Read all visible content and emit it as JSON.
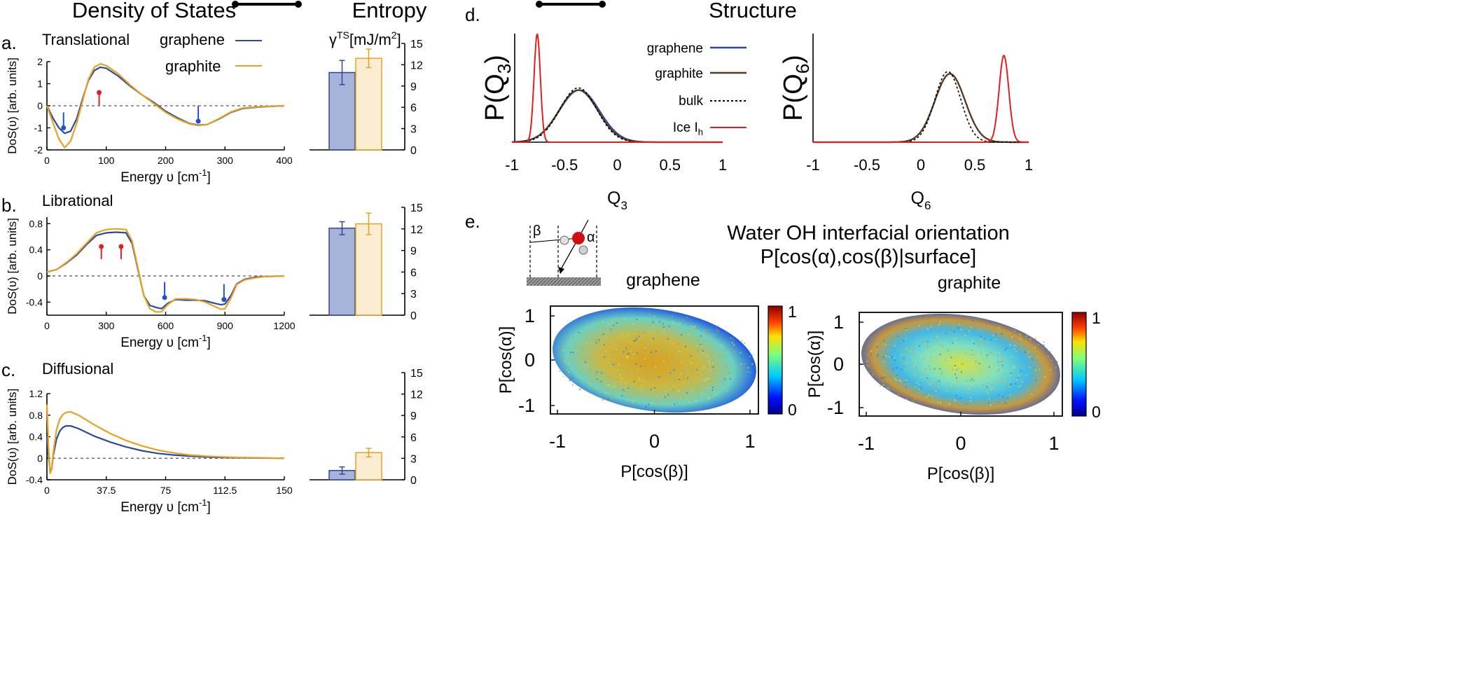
{
  "headers": {
    "dos": "Density of States",
    "entropy": "Entropy",
    "structure": "Structure"
  },
  "panel_labels": {
    "a": "a.",
    "b": "b.",
    "c": "c.",
    "d": "d.",
    "e": "e."
  },
  "colors": {
    "graphene": "#2b4a9b",
    "graphite": "#e8a21f",
    "graphene_bar": "#a7b3d9",
    "graphite_bar": "#fbedd2",
    "ice": "#e02020",
    "bulk": "#000000",
    "graphite_structure": "#5a3a1a",
    "up_arrow": "#e02020",
    "down_arrow": "#2050d0"
  },
  "legend": {
    "graphene": "graphene",
    "graphite": "graphite"
  },
  "structure_legend": {
    "graphene": "graphene",
    "graphite": "graphite",
    "bulk": "bulk",
    "ice": "Ice I",
    "ice_sub": "h"
  },
  "e_panel": {
    "title1": "Water OH interfacial orientation",
    "title2": "P[cos(α),cos(β)|surface]",
    "schematic_beta": "β",
    "schematic_alpha": "α",
    "left_title": "graphene",
    "right_title": "graphite",
    "ylabel": "P[cos(α)]",
    "xlabel": "P[cos(β)]",
    "colorbar_ticks": [
      "1",
      "0"
    ]
  },
  "chart_data": [
    {
      "id": "a_dos",
      "type": "line",
      "subtitle": "Translational",
      "xlabel": "Energy υ [cm",
      "xlabel_sup": "-1",
      "xlabel_tail": "]",
      "ylabel": "DoS(υ) [arb. units]",
      "xlim": [
        0,
        400
      ],
      "ylim": [
        -2,
        2
      ],
      "xticks": [
        0,
        100,
        200,
        300,
        400
      ],
      "yticks": [
        -2,
        -1,
        0,
        1,
        2
      ],
      "series": [
        {
          "name": "graphene",
          "x": [
            0,
            10,
            20,
            30,
            40,
            50,
            60,
            70,
            80,
            90,
            100,
            120,
            140,
            160,
            180,
            200,
            220,
            240,
            255,
            270,
            290,
            310,
            330,
            360,
            400
          ],
          "y": [
            0,
            -0.55,
            -1.0,
            -1.25,
            -1.15,
            -0.6,
            0.3,
            1.15,
            1.6,
            1.75,
            1.7,
            1.35,
            0.9,
            0.5,
            0.15,
            -0.25,
            -0.55,
            -0.8,
            -0.88,
            -0.85,
            -0.6,
            -0.3,
            -0.12,
            -0.05,
            0
          ]
        },
        {
          "name": "graphite",
          "x": [
            0,
            10,
            20,
            30,
            40,
            50,
            60,
            70,
            80,
            90,
            100,
            120,
            140,
            160,
            180,
            200,
            220,
            240,
            255,
            270,
            290,
            310,
            330,
            360,
            400
          ],
          "y": [
            0,
            -0.75,
            -1.5,
            -1.9,
            -1.6,
            -0.8,
            0.2,
            1.2,
            1.75,
            1.9,
            1.82,
            1.45,
            0.95,
            0.5,
            0.1,
            -0.3,
            -0.6,
            -0.82,
            -0.9,
            -0.85,
            -0.58,
            -0.28,
            -0.1,
            -0.04,
            0
          ]
        }
      ],
      "markers": [
        {
          "dir": "down",
          "x": 28,
          "y": -1.0
        },
        {
          "dir": "up",
          "x": 88,
          "y": 0.6
        },
        {
          "dir": "down",
          "x": 255,
          "y": -0.7
        }
      ]
    },
    {
      "id": "a_entropy",
      "type": "bar",
      "ylabel": "γ",
      "ylabel_sup": "TS",
      "ylabel_tail": "[mJ/m",
      "ylabel_sup2": "2",
      "ylabel_end": "]",
      "ylim": [
        0,
        15
      ],
      "yticks": [
        0,
        3,
        6,
        9,
        12,
        15
      ],
      "categories": [
        "graphene",
        "graphite"
      ],
      "values": [
        10.9,
        12.9
      ],
      "errors": [
        1.7,
        1.3
      ]
    },
    {
      "id": "b_dos",
      "type": "line",
      "subtitle": "Librational",
      "xlabel": "Energy υ [cm",
      "xlabel_sup": "-1",
      "xlabel_tail": "]",
      "ylabel": "DoS(υ) [arb. units]",
      "xlim": [
        0,
        1200
      ],
      "ylim": [
        -0.6,
        0.9
      ],
      "xticks": [
        0,
        300,
        600,
        900,
        1200
      ],
      "yticks": [
        -0.4,
        0,
        0.4,
        0.8
      ],
      "series": [
        {
          "name": "graphene",
          "x": [
            0,
            50,
            100,
            150,
            200,
            250,
            300,
            350,
            400,
            430,
            460,
            490,
            520,
            550,
            580,
            610,
            650,
            700,
            750,
            800,
            850,
            880,
            900,
            930,
            960,
            1000,
            1050,
            1100,
            1200
          ],
          "y": [
            0.06,
            0.1,
            0.2,
            0.32,
            0.48,
            0.62,
            0.66,
            0.67,
            0.66,
            0.5,
            0.1,
            -0.3,
            -0.45,
            -0.48,
            -0.5,
            -0.42,
            -0.36,
            -0.37,
            -0.37,
            -0.38,
            -0.42,
            -0.44,
            -0.43,
            -0.3,
            -0.12,
            -0.05,
            -0.02,
            -0.01,
            0
          ]
        },
        {
          "name": "graphite",
          "x": [
            0,
            50,
            100,
            150,
            200,
            250,
            300,
            350,
            400,
            430,
            460,
            490,
            520,
            550,
            580,
            610,
            650,
            700,
            750,
            800,
            850,
            880,
            900,
            930,
            960,
            1000,
            1050,
            1100,
            1200
          ],
          "y": [
            0.06,
            0.1,
            0.21,
            0.34,
            0.5,
            0.66,
            0.71,
            0.72,
            0.71,
            0.54,
            0.12,
            -0.3,
            -0.5,
            -0.55,
            -0.55,
            -0.44,
            -0.35,
            -0.35,
            -0.36,
            -0.4,
            -0.47,
            -0.51,
            -0.5,
            -0.34,
            -0.13,
            -0.06,
            -0.03,
            -0.01,
            0
          ]
        }
      ],
      "markers": [
        {
          "dir": "up",
          "x": 275,
          "y": 0.45
        },
        {
          "dir": "up",
          "x": 375,
          "y": 0.45
        },
        {
          "dir": "down",
          "x": 595,
          "y": -0.33
        },
        {
          "dir": "down",
          "x": 895,
          "y": -0.36
        }
      ]
    },
    {
      "id": "b_entropy",
      "type": "bar",
      "ylim": [
        0,
        15
      ],
      "yticks": [
        0,
        3,
        6,
        9,
        12,
        15
      ],
      "categories": [
        "graphene",
        "graphite"
      ],
      "values": [
        12.1,
        12.7
      ],
      "errors": [
        0.9,
        1.5
      ]
    },
    {
      "id": "c_dos",
      "type": "line",
      "subtitle": "Diffusional",
      "xlabel": "Energy υ [cm",
      "xlabel_sup": "-1",
      "xlabel_tail": "]",
      "ylabel": "DoS(υ) [arb. units]",
      "xlim": [
        0,
        150
      ],
      "ylim": [
        -0.4,
        1.2
      ],
      "xticks": [
        0,
        37.5,
        75,
        112.5,
        150
      ],
      "yticks": [
        -0.4,
        0,
        0.4,
        0.8,
        1.2
      ],
      "series": [
        {
          "name": "graphene",
          "x": [
            0,
            1,
            2,
            3,
            4,
            6,
            8,
            10,
            12,
            15,
            20,
            25,
            30,
            40,
            50,
            60,
            70,
            80,
            90,
            100,
            110,
            120,
            135,
            150
          ],
          "y": [
            0.4,
            0.05,
            -0.22,
            -0.2,
            0.05,
            0.35,
            0.5,
            0.57,
            0.6,
            0.6,
            0.55,
            0.48,
            0.41,
            0.3,
            0.21,
            0.14,
            0.09,
            0.06,
            0.04,
            0.025,
            0.015,
            0.01,
            0.005,
            0
          ]
        },
        {
          "name": "graphite",
          "x": [
            0,
            1,
            2,
            3,
            4,
            6,
            8,
            10,
            12,
            15,
            20,
            25,
            30,
            40,
            50,
            60,
            70,
            80,
            90,
            100,
            110,
            120,
            135,
            150
          ],
          "y": [
            1.0,
            0.2,
            -0.28,
            -0.2,
            0.1,
            0.52,
            0.72,
            0.81,
            0.85,
            0.86,
            0.8,
            0.71,
            0.62,
            0.46,
            0.33,
            0.23,
            0.15,
            0.1,
            0.06,
            0.04,
            0.025,
            0.015,
            0.008,
            0
          ]
        }
      ]
    },
    {
      "id": "c_entropy",
      "type": "bar",
      "ylim": [
        0,
        15
      ],
      "yticks": [
        0,
        3,
        6,
        9,
        12,
        15
      ],
      "categories": [
        "graphene",
        "graphite"
      ],
      "values": [
        1.3,
        3.8
      ],
      "errors": [
        0.5,
        0.6
      ]
    },
    {
      "id": "d_q3",
      "type": "line",
      "ylabel": "P(Q",
      "ylabel_sub": "3",
      "ylabel_end": ")",
      "xlabel": "Q",
      "xlabel_sub": "3",
      "xlim": [
        -1,
        1
      ],
      "xticks": [
        -1,
        -0.5,
        0,
        0.5,
        1
      ],
      "xticklabels": [
        "-1",
        "-0.5",
        "0",
        "0.5",
        "1"
      ],
      "series": [
        {
          "name": "graphene",
          "mu": -0.36,
          "sigma": 0.19,
          "amp": 0.48
        },
        {
          "name": "graphite",
          "mu": -0.37,
          "sigma": 0.185,
          "amp": 0.48
        },
        {
          "name": "bulk",
          "mu": -0.37,
          "sigma": 0.175,
          "amp": 0.5
        },
        {
          "name": "Ice Ih",
          "mu": -0.76,
          "sigma": 0.03,
          "amp": 1.0
        }
      ]
    },
    {
      "id": "d_q6",
      "type": "line",
      "ylabel": "P(Q",
      "ylabel_sub": "6",
      "ylabel_end": ")",
      "xlabel": "Q",
      "xlabel_sub": "6",
      "xlim": [
        -1,
        1
      ],
      "xticks": [
        -1,
        -0.5,
        0,
        0.5,
        1
      ],
      "xticklabels": [
        "-1",
        "-0.5",
        "0",
        "0.5",
        "1"
      ],
      "series": [
        {
          "name": "graphene",
          "mu": 0.27,
          "sigma": 0.14,
          "amp": 0.63
        },
        {
          "name": "graphite",
          "mu": 0.27,
          "sigma": 0.14,
          "amp": 0.63
        },
        {
          "name": "bulk",
          "mu": 0.25,
          "sigma": 0.12,
          "amp": 0.65
        },
        {
          "name": "Ice Ih",
          "mu": 0.77,
          "sigma": 0.045,
          "amp": 0.8
        }
      ]
    },
    {
      "id": "e_graphene",
      "type": "heatmap",
      "xlim": [
        -1,
        1
      ],
      "ylim": [
        -1,
        1
      ],
      "xticklabels": [
        "-1",
        "0",
        "1"
      ],
      "yticklabels": [
        "1",
        "0",
        "-1"
      ],
      "colorbar": [
        0,
        1
      ]
    },
    {
      "id": "e_graphite",
      "type": "heatmap",
      "xlim": [
        -1,
        1
      ],
      "ylim": [
        -1,
        1
      ],
      "xticklabels": [
        "-1",
        "0",
        "1"
      ],
      "yticklabels": [
        "1",
        "0",
        "-1"
      ],
      "colorbar": [
        0,
        1
      ]
    }
  ]
}
